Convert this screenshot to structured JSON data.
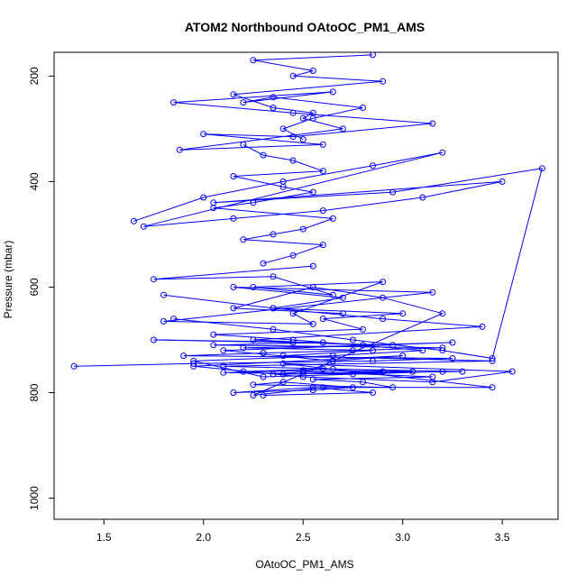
{
  "chart_data": {
    "type": "line",
    "title": "ATOM2 Northbound OAtoOC_PM1_AMS",
    "xlabel": "OAtoOC_PM1_AMS",
    "ylabel": "Pressure (mbar)",
    "xlim": [
      1.25,
      3.78
    ],
    "ylim": [
      1040,
      155
    ],
    "y_reversed": true,
    "x_ticks": [
      1.5,
      2.0,
      2.5,
      3.0,
      3.5
    ],
    "x_tick_labels": [
      "1.5",
      "2.0",
      "2.5",
      "3.0",
      "3.5"
    ],
    "y_ticks": [
      200,
      400,
      600,
      800,
      1000
    ],
    "y_tick_labels": [
      "200",
      "400",
      "600",
      "800",
      "1000"
    ],
    "grid": false,
    "legend": "none",
    "series_color": "#0000ff",
    "marker": "open-circle",
    "series": [
      {
        "x": [
          1.35,
          1.95,
          2.85,
          3.25,
          1.9,
          2.3,
          2.75,
          3.2,
          2.05,
          2.6,
          1.75,
          2.45,
          2.95,
          2.2,
          2.85,
          2.4,
          3.45,
          2.1,
          2.65,
          3.05,
          2.35,
          2.5,
          3.15,
          2.55,
          2.8,
          2.95,
          2.25,
          2.4,
          2.75,
          2.55,
          2.15,
          2.55,
          2.85,
          2.3
        ],
        "y": [
          750,
          745,
          740,
          735,
          730,
          725,
          720,
          715,
          710,
          705,
          700,
          705,
          710,
          715,
          720,
          730,
          740,
          750,
          755,
          760,
          765,
          760,
          770,
          775,
          780,
          790,
          785,
          780,
          790,
          795,
          800,
          790,
          800,
          805
        ]
      },
      {
        "x": [
          2.2,
          2.6,
          3.3,
          2.4,
          2.9,
          2.5,
          2.1,
          2.75,
          3.2,
          2.3,
          1.95,
          2.65,
          3.1,
          2.45,
          2.05,
          2.8,
          2.6,
          3.0,
          2.35,
          2.7,
          2.15,
          3.15,
          1.8,
          2.55,
          2.45,
          2.9,
          2.25,
          2.65,
          2.35,
          1.75,
          2.55
        ],
        "y": [
          760,
          755,
          760,
          765,
          760,
          758,
          762,
          765,
          760,
          770,
          740,
          730,
          720,
          700,
          690,
          680,
          660,
          650,
          640,
          620,
          600,
          610,
          665,
          670,
          650,
          590,
          600,
          615,
          580,
          585,
          560
        ]
      },
      {
        "x": [
          2.3,
          2.45,
          2.6,
          2.2,
          2.35,
          2.5,
          2.65,
          2.05,
          2.25,
          2.55,
          2.4,
          2.15,
          2.6,
          2.45,
          2.3,
          2.2
        ],
        "y": [
          555,
          540,
          520,
          510,
          500,
          490,
          470,
          450,
          440,
          420,
          410,
          390,
          380,
          360,
          350,
          330
        ]
      },
      {
        "x": [
          2.5,
          2.4,
          2.55,
          2.8,
          2.35,
          2.2,
          2.65,
          1.85,
          2.45,
          3.15,
          2.45,
          2.0,
          2.6,
          1.88,
          2.7,
          2.5,
          2.55,
          2.35,
          2.15,
          2.9,
          2.45,
          2.55,
          2.25,
          2.85
        ],
        "y": [
          320,
          300,
          280,
          260,
          240,
          250,
          230,
          250,
          270,
          290,
          315,
          310,
          330,
          340,
          300,
          280,
          270,
          260,
          235,
          210,
          200,
          190,
          170,
          160
        ]
      },
      {
        "x": [
          1.65,
          2.0,
          2.4,
          2.85,
          3.2,
          1.7,
          2.15,
          2.6,
          3.1,
          3.5,
          2.05,
          2.95,
          3.7,
          3.45,
          3.2,
          2.75,
          2.35,
          1.85
        ],
        "y": [
          475,
          430,
          400,
          370,
          345,
          485,
          470,
          455,
          430,
          400,
          440,
          420,
          375,
          735,
          720,
          700,
          680,
          660
        ]
      },
      {
        "x": [
          1.8,
          2.35,
          2.9,
          3.4,
          2.25,
          2.8,
          3.25,
          2.1,
          2.65,
          3.0,
          1.95,
          2.5,
          3.15,
          3.55,
          2.4,
          3.45,
          2.6,
          2.25,
          3.2,
          2.9,
          2.55,
          2.15,
          2.7
        ],
        "y": [
          615,
          640,
          660,
          675,
          700,
          710,
          705,
          720,
          740,
          730,
          750,
          770,
          780,
          760,
          745,
          790,
          790,
          805,
          650,
          620,
          600,
          640,
          650
        ]
      }
    ]
  }
}
